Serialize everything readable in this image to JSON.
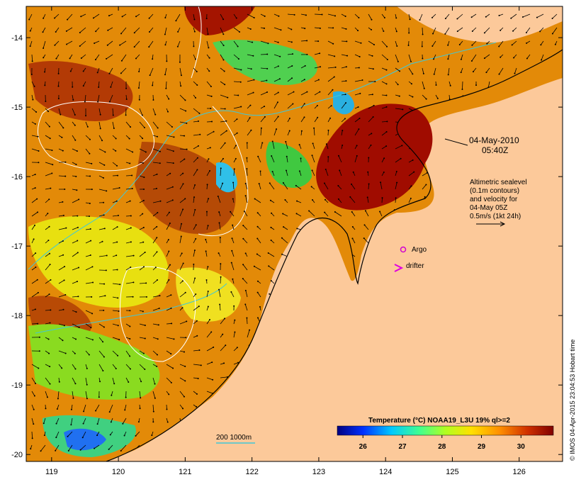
{
  "map": {
    "date_label": "04-May-2010",
    "time_label": "05:40Z",
    "altimetry_lines": [
      "Altimetric sealevel",
      "(0.1m contours)",
      "and velocity for",
      "04-May 05Z",
      "0.5m/s (1kt 24h)"
    ],
    "argo_label": "Argo",
    "drifter_label": "drifter",
    "depth_legend": "200  1000m",
    "colorbar_title": "Temperature (°C) NOAA19_L3U 19% ql>=2",
    "colorbar_ticks": [
      "26",
      "27",
      "28",
      "29",
      "30"
    ],
    "credit": "© IMOS 04-Apr-2015 23:04:53 Hobart time",
    "lon_ticks": [
      "119",
      "120",
      "121",
      "122",
      "123",
      "124",
      "125",
      "126"
    ],
    "lat_ticks": [
      "-14",
      "-15",
      "-16",
      "-17",
      "-18",
      "-19",
      "-20"
    ],
    "colors": {
      "land": "#fcc99a",
      "frame": "#000000",
      "argo": "#d000d0",
      "drifter": "#e000e0",
      "contour_200": "#40c8d8",
      "contour_sealevel": "#ffffff"
    }
  }
}
